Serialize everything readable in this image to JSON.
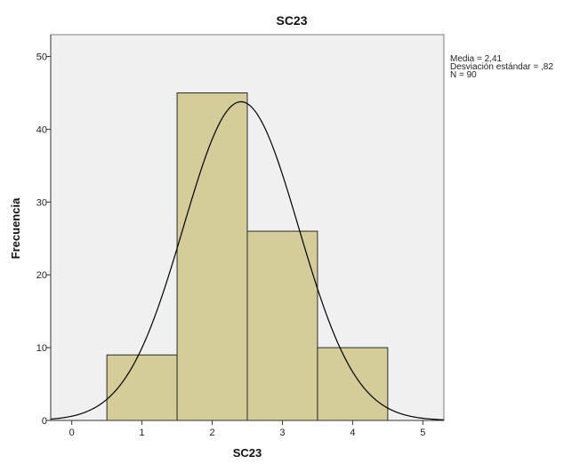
{
  "chart_data": {
    "type": "bar",
    "title": "SC23",
    "xlabel": "SC23",
    "ylabel": "Frecuencia",
    "bins": [
      {
        "x0": 0.5,
        "x1": 1.5,
        "value": 9
      },
      {
        "x0": 1.5,
        "x1": 2.5,
        "value": 45
      },
      {
        "x0": 2.5,
        "x1": 3.5,
        "value": 26
      },
      {
        "x0": 3.5,
        "x1": 4.5,
        "value": 10
      }
    ],
    "xlim": [
      -0.3,
      5.3
    ],
    "ylim": [
      0,
      53
    ],
    "xticks": [
      "0",
      "1",
      "2",
      "3",
      "4",
      "5"
    ],
    "yticks": [
      "0",
      "10",
      "20",
      "30",
      "40",
      "50"
    ],
    "normal_curve": {
      "mean": 2.41,
      "sd": 0.82,
      "n": 90,
      "bin_width": 1
    },
    "stats": [
      "Media = 2,41",
      "Desviación estándar = ,82",
      "N = 90"
    ],
    "grid": false,
    "colors": {
      "bar_fill": "#d4cc99",
      "bar_stroke": "#2b2b2b",
      "plot_bg": "#f0f0f0",
      "curve": "#000000"
    }
  }
}
